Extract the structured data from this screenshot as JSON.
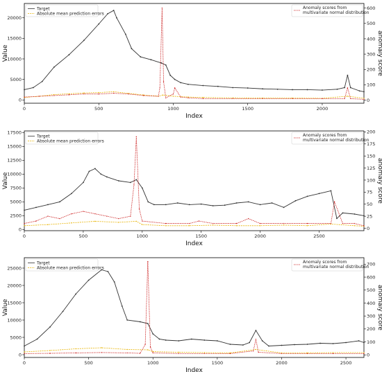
{
  "chart_data": [
    {
      "type": "line",
      "xlabel": "Index",
      "ylabel": "Value",
      "y2label": "anomaly score",
      "xlim": [
        0,
        2280
      ],
      "ylim": [
        -800,
        23500
      ],
      "y2lim": [
        -20,
        630
      ],
      "xticks": [
        0,
        500,
        1000,
        1500,
        2000
      ],
      "yticks": [
        0,
        5000,
        10000,
        15000,
        20000
      ],
      "y2ticks": [
        0,
        100,
        200,
        300,
        400,
        500,
        600
      ],
      "legend_left": [
        "Target",
        "Absolute mean prediction errors"
      ],
      "legend_right": [
        "Anomaly scores from multivariate normal distribution"
      ],
      "series": [
        {
          "name": "Target",
          "color": "#333333",
          "axis": "left",
          "x": [
            0,
            60,
            120,
            200,
            300,
            400,
            500,
            560,
            600,
            620,
            680,
            720,
            780,
            850,
            920,
            950,
            980,
            1010,
            1050,
            1100,
            1200,
            1300,
            1400,
            1500,
            1600,
            1700,
            1800,
            1900,
            2000,
            2100,
            2150,
            2170,
            2190,
            2250,
            2280
          ],
          "y": [
            2500,
            3000,
            4500,
            8000,
            11000,
            14500,
            18500,
            21000,
            21800,
            20000,
            16000,
            12500,
            10500,
            9800,
            9000,
            8500,
            6000,
            5000,
            4200,
            3800,
            3500,
            3300,
            3000,
            2900,
            2700,
            2600,
            2500,
            2500,
            2400,
            2600,
            3000,
            6000,
            3000,
            2200,
            2000
          ]
        },
        {
          "name": "Absolute mean prediction errors",
          "color": "#e8b300",
          "axis": "left",
          "x": [
            0,
            100,
            200,
            300,
            400,
            500,
            600,
            700,
            800,
            900,
            930,
            1000,
            1100,
            1200,
            1400,
            1600,
            1800,
            2000,
            2170,
            2280
          ],
          "y": [
            600,
            900,
            1300,
            1500,
            1700,
            1800,
            2000,
            1600,
            1200,
            900,
            1200,
            900,
            700,
            600,
            500,
            450,
            450,
            400,
            900,
            400
          ]
        },
        {
          "name": "Anomaly scores from multivariate normal distribution",
          "color": "#cc2222",
          "axis": "right",
          "x": [
            0,
            100,
            200,
            300,
            400,
            500,
            600,
            700,
            800,
            900,
            910,
            925,
            935,
            950,
            1000,
            1010,
            1050,
            1100,
            1200,
            1400,
            1600,
            1800,
            2000,
            2150,
            2170,
            2190,
            2280
          ],
          "y": [
            20,
            25,
            30,
            35,
            40,
            40,
            45,
            40,
            30,
            25,
            80,
            600,
            120,
            15,
            40,
            80,
            20,
            15,
            10,
            10,
            10,
            10,
            10,
            10,
            80,
            10,
            5
          ]
        }
      ]
    },
    {
      "type": "line",
      "xlabel": "Index",
      "ylabel": "Value",
      "y2label": "anomaly score",
      "xlim": [
        0,
        2880
      ],
      "ylim": [
        -200,
        17800
      ],
      "y2lim": [
        -5,
        202
      ],
      "xticks": [
        0,
        500,
        1000,
        1500,
        2000,
        2500
      ],
      "yticks": [
        0,
        2500,
        5000,
        7500,
        10000,
        12500,
        15000,
        17500
      ],
      "y2ticks": [
        0,
        25,
        50,
        75,
        100,
        125,
        150,
        175,
        200
      ],
      "legend_left": [
        "Target",
        "Absolute mean prediction errors"
      ],
      "legend_right": [
        "Anomaly scores from multivariate normal distribution"
      ],
      "series": [
        {
          "name": "Target",
          "color": "#333333",
          "axis": "left",
          "x": [
            0,
            100,
            200,
            300,
            400,
            500,
            550,
            600,
            650,
            700,
            800,
            900,
            950,
            1000,
            1050,
            1100,
            1200,
            1300,
            1400,
            1500,
            1600,
            1700,
            1800,
            1900,
            2000,
            2100,
            2200,
            2300,
            2400,
            2500,
            2600,
            2650,
            2700,
            2800,
            2880
          ],
          "y": [
            3500,
            4000,
            4500,
            5000,
            6500,
            8500,
            10500,
            11000,
            10000,
            9500,
            8800,
            8500,
            9000,
            7500,
            5000,
            4500,
            4500,
            4800,
            4500,
            4600,
            4300,
            4400,
            4800,
            5000,
            4500,
            4800,
            4000,
            5200,
            6000,
            6500,
            7000,
            2000,
            3000,
            2800,
            2500
          ]
        },
        {
          "name": "Absolute mean prediction errors",
          "color": "#e8b300",
          "axis": "left",
          "x": [
            0,
            200,
            400,
            600,
            800,
            950,
            1000,
            1200,
            1400,
            1600,
            1800,
            2000,
            2200,
            2400,
            2600,
            2800,
            2880
          ],
          "y": [
            700,
            900,
            1200,
            1500,
            1300,
            1500,
            900,
            700,
            700,
            800,
            700,
            700,
            800,
            700,
            1000,
            700,
            600
          ]
        },
        {
          "name": "Anomaly scores from multivariate normal distribution",
          "color": "#cc2222",
          "axis": "right",
          "x": [
            0,
            100,
            200,
            300,
            400,
            500,
            600,
            700,
            800,
            900,
            930,
            950,
            975,
            1000,
            1200,
            1400,
            1480,
            1600,
            1800,
            1900,
            2000,
            2200,
            2400,
            2600,
            2630,
            2700,
            2800,
            2880
          ],
          "y": [
            10,
            15,
            25,
            20,
            30,
            35,
            30,
            25,
            20,
            25,
            90,
            190,
            40,
            15,
            10,
            10,
            15,
            10,
            10,
            20,
            10,
            10,
            10,
            10,
            55,
            10,
            10,
            5
          ]
        }
      ]
    },
    {
      "type": "line",
      "xlabel": "Index",
      "ylabel": "Value",
      "y2label": "anomaly score",
      "xlim": [
        0,
        2640
      ],
      "ylim": [
        -800,
        28000
      ],
      "y2lim": [
        -20,
        750
      ],
      "xticks": [
        0,
        500,
        1000,
        1500,
        2000,
        2500
      ],
      "yticks": [
        0,
        5000,
        10000,
        15000,
        20000,
        25000
      ],
      "y2ticks": [
        0,
        100,
        200,
        300,
        400,
        500,
        600,
        700
      ],
      "legend_left": [
        "Target",
        "Absolute mean prediction errors"
      ],
      "legend_right": [
        "Anomaly scores from multivariate normal distribution"
      ],
      "series": [
        {
          "name": "Target",
          "color": "#333333",
          "axis": "left",
          "x": [
            0,
            100,
            200,
            300,
            400,
            500,
            600,
            650,
            700,
            760,
            800,
            900,
            960,
            1000,
            1050,
            1100,
            1200,
            1300,
            1400,
            1500,
            1600,
            1700,
            1750,
            1800,
            1850,
            1900,
            2000,
            2100,
            2200,
            2300,
            2400,
            2500,
            2600,
            2640
          ],
          "y": [
            2500,
            4500,
            8000,
            12500,
            17500,
            21500,
            24500,
            24000,
            21000,
            14000,
            10000,
            9500,
            9000,
            6000,
            4500,
            4200,
            4000,
            4500,
            4200,
            4000,
            3000,
            2800,
            3500,
            7000,
            4000,
            2500,
            2700,
            2900,
            3000,
            3300,
            3200,
            3500,
            4000,
            3500
          ]
        },
        {
          "name": "Absolute mean prediction errors",
          "color": "#e8b300",
          "axis": "left",
          "x": [
            0,
            200,
            400,
            600,
            800,
            960,
            1000,
            1200,
            1400,
            1600,
            1800,
            2000,
            2200,
            2400,
            2640
          ],
          "y": [
            800,
            1200,
            1700,
            2000,
            1500,
            1400,
            900,
            700,
            600,
            500,
            1500,
            500,
            500,
            600,
            600
          ]
        },
        {
          "name": "Anomaly scores from multivariate normal distribution",
          "color": "#cc2222",
          "axis": "right",
          "x": [
            0,
            200,
            400,
            600,
            800,
            900,
            940,
            960,
            980,
            1000,
            1200,
            1400,
            1600,
            1780,
            1800,
            1820,
            2000,
            2200,
            2400,
            2640
          ],
          "y": [
            10,
            12,
            15,
            18,
            15,
            12,
            80,
            720,
            60,
            15,
            10,
            10,
            10,
            30,
            120,
            20,
            10,
            10,
            10,
            10
          ]
        }
      ]
    }
  ]
}
